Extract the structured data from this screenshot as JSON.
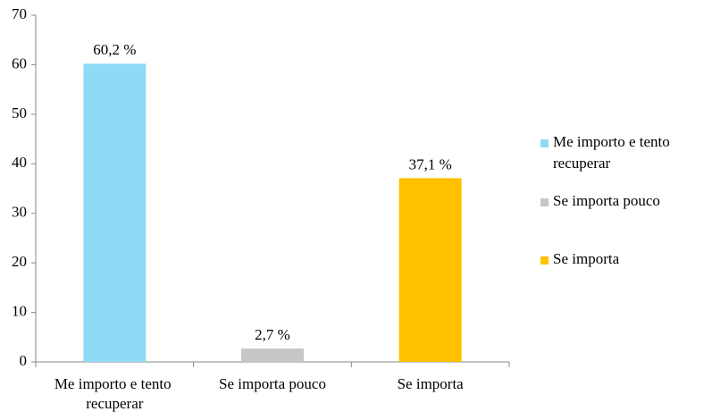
{
  "chart_data": {
    "type": "bar",
    "categories": [
      "Me importo e tento recuperar",
      "Se importa pouco",
      "Se importa"
    ],
    "values": [
      60.2,
      2.7,
      37.1
    ],
    "value_labels": [
      "60,2 %",
      "2,7 %",
      "37,1 %"
    ],
    "colors": [
      "#8fdbf6",
      "#c6c6c6",
      "#ffc000"
    ],
    "ylim": [
      0,
      70
    ],
    "yticks": [
      0,
      10,
      20,
      30,
      40,
      50,
      60,
      70
    ],
    "legend": "right"
  }
}
